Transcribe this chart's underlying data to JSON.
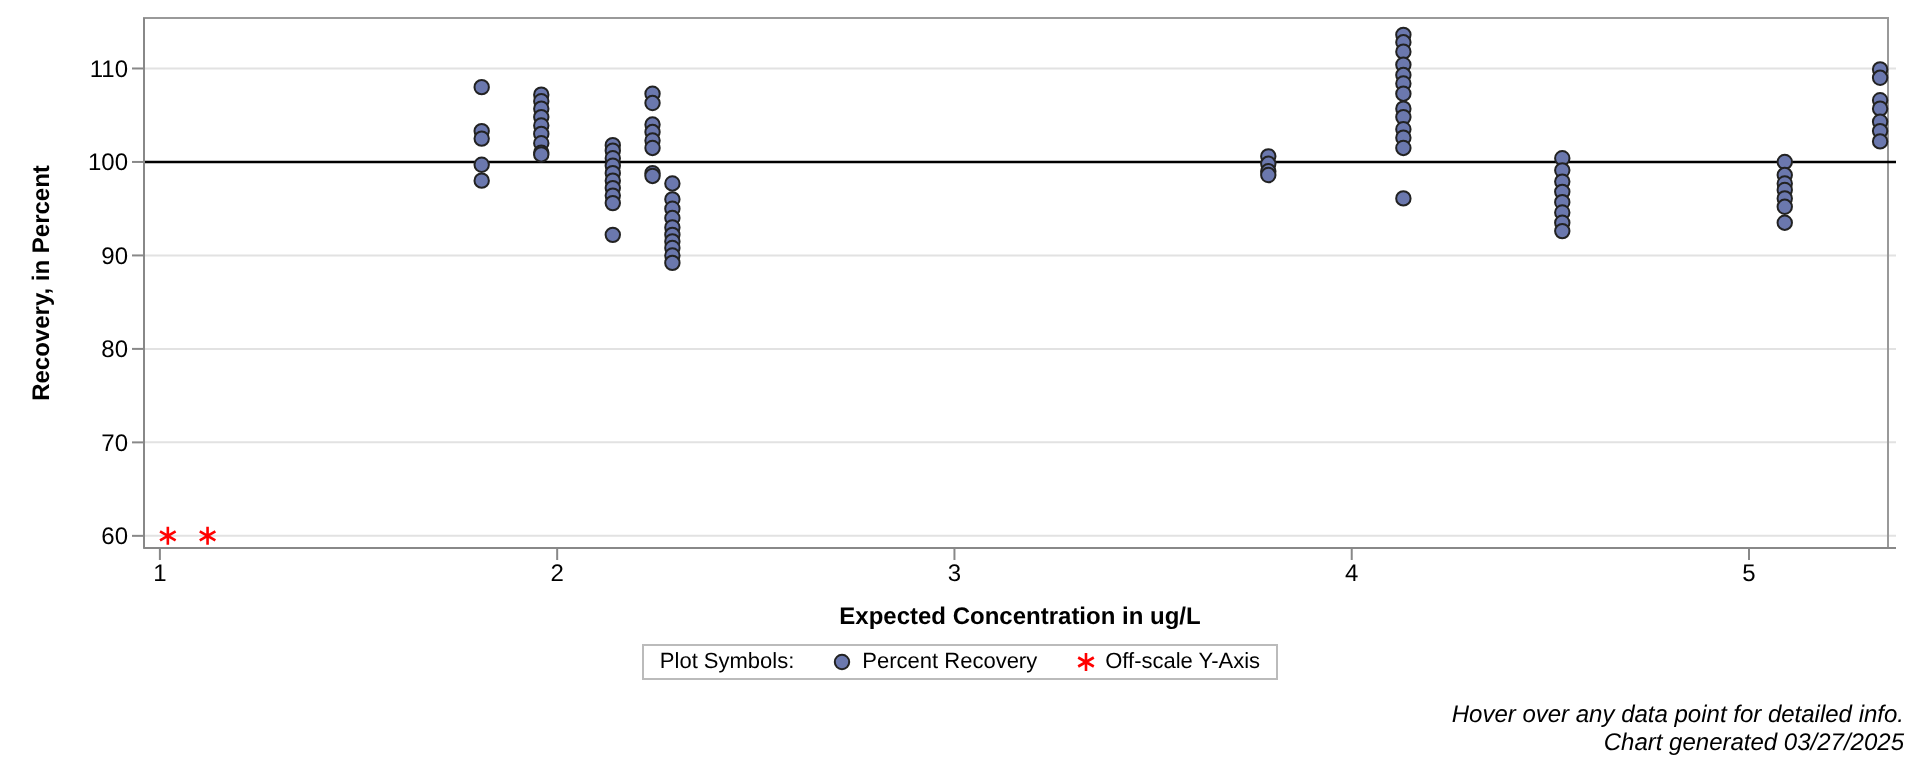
{
  "chart_data": {
    "type": "scatter",
    "xlabel": "Expected Concentration in ug/L",
    "ylabel": "Recovery, in Percent",
    "legend_title": "Plot Symbols:",
    "legend": "bottom",
    "grid": "y",
    "xlim": [
      0.96,
      5.37
    ],
    "xticks": [
      1,
      2,
      3,
      4,
      5
    ],
    "ylim": [
      58.7,
      115.4
    ],
    "yticks": [
      60,
      70,
      80,
      90,
      100,
      110
    ],
    "ref_lines": [
      {
        "axis": "y",
        "value": 100,
        "color": "#000000"
      }
    ],
    "series": [
      {
        "name": "Percent Recovery",
        "color": "#6b78ae",
        "marker": "circle",
        "x": [
          1.81,
          1.81,
          1.81,
          1.81,
          1.81,
          1.96,
          1.96,
          1.96,
          1.96,
          1.96,
          1.96,
          1.96,
          1.96,
          1.96,
          2.14,
          2.14,
          2.14,
          2.14,
          2.14,
          2.14,
          2.14,
          2.14,
          2.14,
          2.14,
          2.24,
          2.24,
          2.24,
          2.24,
          2.24,
          2.24,
          2.24,
          2.24,
          2.29,
          2.29,
          2.29,
          2.29,
          2.29,
          2.29,
          2.29,
          2.29,
          2.29,
          2.29,
          3.79,
          3.79,
          3.79,
          3.79,
          4.13,
          4.13,
          4.13,
          4.13,
          4.13,
          4.13,
          4.13,
          4.13,
          4.13,
          4.13,
          4.13,
          4.13,
          4.13,
          4.53,
          4.53,
          4.53,
          4.53,
          4.53,
          4.53,
          4.53,
          4.53,
          5.09,
          5.09,
          5.09,
          5.09,
          5.09,
          5.09,
          5.09,
          5.33,
          5.33,
          5.33,
          5.33,
          5.33,
          5.33,
          5.33
        ],
        "values": [
          108,
          103.3,
          102.5,
          99.7,
          98,
          107.2,
          106.5,
          105.7,
          104.8,
          103.9,
          103,
          102,
          101,
          100.8,
          101.8,
          101.2,
          100.4,
          99.6,
          98.8,
          98,
          97.2,
          96.4,
          95.6,
          92.2,
          107.3,
          106.3,
          104,
          103.2,
          102.3,
          101.5,
          98.8,
          98.5,
          97.7,
          96,
          95,
          94,
          93,
          92.2,
          91.5,
          90.8,
          90,
          89.2,
          100.6,
          99.8,
          99,
          98.6,
          113.6,
          112.8,
          111.8,
          110.4,
          109.3,
          108.4,
          107.3,
          105.7,
          104.8,
          103.5,
          102.6,
          101.5,
          96.1,
          100.4,
          99.1,
          97.9,
          96.8,
          95.7,
          94.6,
          93.5,
          92.6,
          100,
          98.6,
          97.7,
          97,
          96.1,
          95.2,
          93.5,
          109.9,
          109,
          106.6,
          105.7,
          104.3,
          103.3,
          102.2
        ]
      },
      {
        "name": "Off-scale Y-Axis",
        "color": "#ff0000",
        "marker": "cross",
        "x": [
          1.02,
          1.12
        ],
        "values": [
          60,
          60
        ]
      }
    ],
    "annotations": [
      "Hover over any data point for detailed info.",
      "Chart generated 03/27/2025"
    ]
  }
}
